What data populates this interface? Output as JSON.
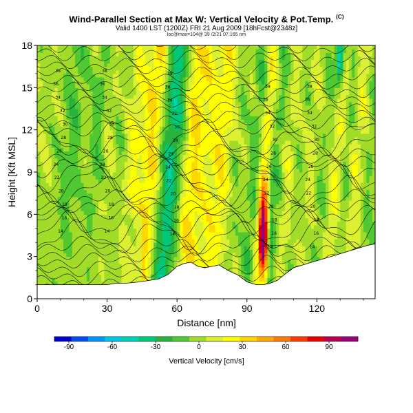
{
  "title": {
    "main": "Wind-Parallel Section at Max W: Vertical Velocity & Pot.Temp.",
    "copyright": "(C)",
    "valid": "Valid 1400 LST (1200Z) FRI 21 Aug 2009 [18hFcst@2348z]",
    "sub": "loc@max=104@ 39 /2/21 07,165 nm"
  },
  "chart_data": {
    "type": "heatmap",
    "xlabel": "Distance [nm]",
    "ylabel": "Height [Kft MSL]",
    "xlim": [
      0,
      145
    ],
    "ylim": [
      0,
      18
    ],
    "xticks": [
      0,
      30,
      60,
      90,
      120
    ],
    "yticks": [
      0,
      3,
      6,
      9,
      12,
      15,
      18
    ],
    "colorbar": {
      "label": "Vertical Velocity [cm/s]",
      "ticks": [
        -90,
        -60,
        -30,
        0,
        30,
        60,
        90
      ],
      "range": [
        -100,
        110
      ],
      "colors": [
        "#0000c8",
        "#0050f0",
        "#0096ff",
        "#00c8e6",
        "#00d2b4",
        "#00c878",
        "#28b43c",
        "#50c832",
        "#a0dc28",
        "#dcf032",
        "#ffff00",
        "#ffd700",
        "#ffaa00",
        "#ff7800",
        "#ff3c00",
        "#e60000",
        "#b40050",
        "#960078"
      ]
    },
    "theta_labels": [
      "14",
      "16",
      "18",
      "20",
      "22",
      "24",
      "26",
      "28",
      "30",
      "32",
      "34",
      "36",
      "38"
    ],
    "terrain": [
      [
        0,
        1.0
      ],
      [
        3,
        1.0
      ],
      [
        5,
        1.0
      ],
      [
        8,
        1.0
      ],
      [
        10,
        1.0
      ],
      [
        14,
        1.0
      ],
      [
        20,
        1.0
      ],
      [
        26,
        1.0
      ],
      [
        30,
        1.0
      ],
      [
        34,
        1.1
      ],
      [
        38,
        1.1
      ],
      [
        44,
        1.2
      ],
      [
        48,
        1.3
      ],
      [
        52,
        1.4
      ],
      [
        56,
        1.7
      ],
      [
        60,
        2.3
      ],
      [
        63,
        2.5
      ],
      [
        66,
        2.6
      ],
      [
        69,
        2.3
      ],
      [
        72,
        2.2
      ],
      [
        75,
        2.3
      ],
      [
        78,
        2.4
      ],
      [
        82,
        2.0
      ],
      [
        86,
        1.7
      ],
      [
        90,
        1.2
      ],
      [
        94,
        1.0
      ],
      [
        97,
        1.0
      ],
      [
        100,
        1.1
      ],
      [
        103,
        1.3
      ],
      [
        106,
        1.7
      ],
      [
        110,
        2.2
      ],
      [
        114,
        2.4
      ],
      [
        118,
        2.6
      ],
      [
        122,
        2.8
      ],
      [
        126,
        3.0
      ],
      [
        130,
        3.2
      ],
      [
        134,
        3.4
      ],
      [
        138,
        3.6
      ],
      [
        142,
        3.8
      ],
      [
        145,
        3.9
      ]
    ]
  }
}
